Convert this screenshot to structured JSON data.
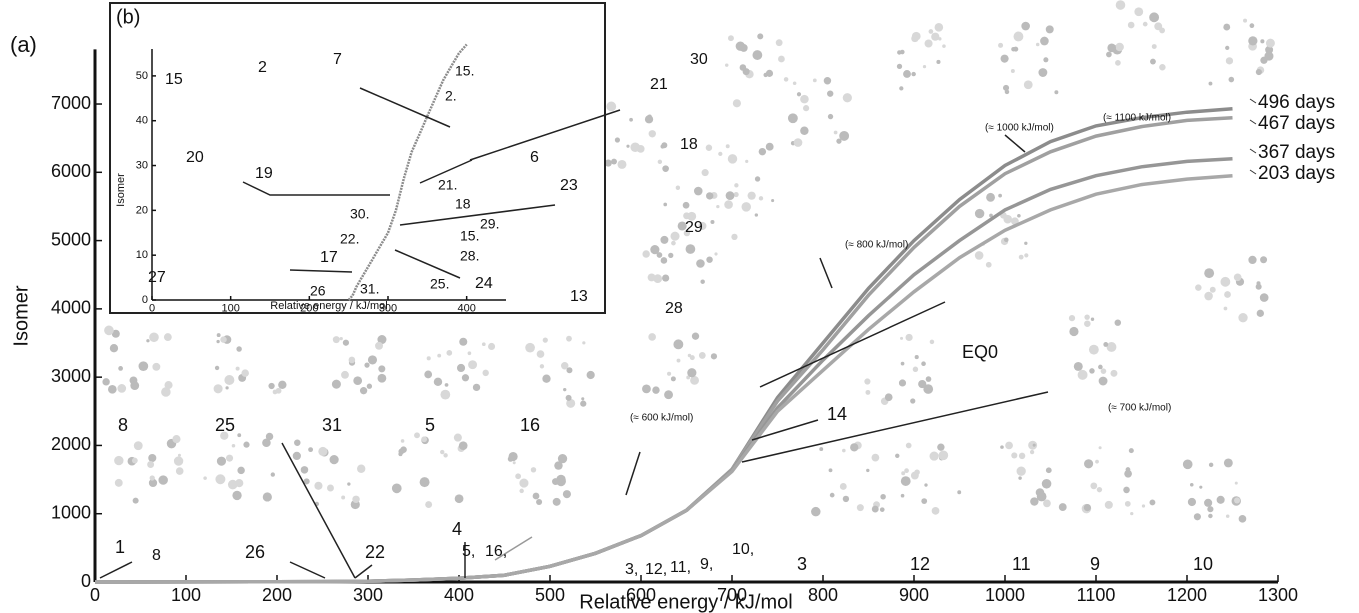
{
  "chart_data": [
    {
      "type": "line",
      "panel": "(a)",
      "x_label": "Relative energy / kJ/mol",
      "y_label": "Isomer",
      "xlim": [
        0,
        1300
      ],
      "xticks": [
        0,
        100,
        200,
        300,
        400,
        500,
        600,
        700,
        800,
        900,
        1000,
        1100,
        1200,
        1300
      ],
      "ylim": [
        0,
        7800
      ],
      "yticks": [
        0,
        1000,
        2000,
        3000,
        4000,
        5000,
        6000,
        7000
      ],
      "x": [
        0,
        100,
        200,
        250,
        300,
        350,
        400,
        450,
        500,
        550,
        600,
        650,
        700,
        750,
        800,
        850,
        900,
        950,
        1000,
        1050,
        1100,
        1150,
        1200,
        1250
      ],
      "series": [
        {
          "name": "496 days",
          "color": "#8c8c8c",
          "values": [
            0,
            2,
            4,
            6,
            12,
            30,
            55,
            100,
            230,
            420,
            680,
            1050,
            1650,
            2700,
            3500,
            4300,
            5000,
            5600,
            6100,
            6450,
            6680,
            6800,
            6880,
            6930
          ]
        },
        {
          "name": "467 days",
          "color": "#a0a0a0",
          "values": [
            0,
            2,
            4,
            6,
            12,
            30,
            55,
            100,
            230,
            420,
            680,
            1050,
            1650,
            2650,
            3400,
            4200,
            4900,
            5500,
            5980,
            6300,
            6530,
            6670,
            6760,
            6800
          ]
        },
        {
          "name": "367 days",
          "color": "#969696",
          "values": [
            0,
            2,
            4,
            6,
            12,
            30,
            55,
            100,
            230,
            420,
            680,
            1050,
            1630,
            2550,
            3250,
            3900,
            4500,
            5000,
            5450,
            5750,
            5950,
            6080,
            6160,
            6200
          ]
        },
        {
          "name": "203 days",
          "color": "#a8a8a8",
          "values": [
            0,
            2,
            4,
            6,
            12,
            30,
            55,
            100,
            230,
            420,
            680,
            1050,
            1620,
            2500,
            3100,
            3700,
            4250,
            4750,
            5150,
            5450,
            5680,
            5820,
            5900,
            5950
          ]
        }
      ],
      "annotations": [
        "1",
        "8",
        "26",
        "8",
        "25",
        "31",
        "5",
        "16",
        "22",
        "4",
        "5,",
        "16,",
        "3,",
        "12,",
        "11,",
        "9,",
        "10,",
        "3",
        "12",
        "11",
        "9",
        "10",
        "14",
        "EQ0",
        "(≈ 600 kJ/mol)",
        "(≈ 700 kJ/mol)",
        "(≈ 800 kJ/mol)",
        "(≈ 1000 kJ/mol)",
        "(≈ 1100 kJ/mol)"
      ]
    },
    {
      "type": "line",
      "panel": "(b)",
      "x_label": "Relative energy / kJ/mol",
      "y_label": "Isomer",
      "xlim": [
        0,
        450
      ],
      "xticks": [
        0,
        100,
        200,
        300,
        400
      ],
      "ylim": [
        0,
        56
      ],
      "yticks": [
        0,
        10,
        20,
        30,
        40,
        50
      ],
      "x": [
        250,
        255,
        260,
        270,
        280,
        290,
        300,
        310,
        320,
        330,
        340,
        350,
        360,
        370,
        380,
        390,
        400
      ],
      "series": [
        {
          "color": "#8c8c8c",
          "values": [
            0,
            1,
            3,
            6,
            9,
            12,
            15,
            20,
            27,
            33,
            37,
            41,
            45,
            49,
            52,
            55,
            57
          ]
        }
      ],
      "annotations": [
        "15",
        "2",
        "7",
        "15.",
        "2.",
        "21",
        "30",
        "18",
        "6",
        "20",
        "19",
        "21.",
        "23",
        "30.",
        "18",
        "22.",
        "15.",
        "29.",
        "28.",
        "17",
        "24",
        "27",
        "26",
        "31.",
        "25.",
        "13",
        "28",
        "29"
      ]
    }
  ]
}
